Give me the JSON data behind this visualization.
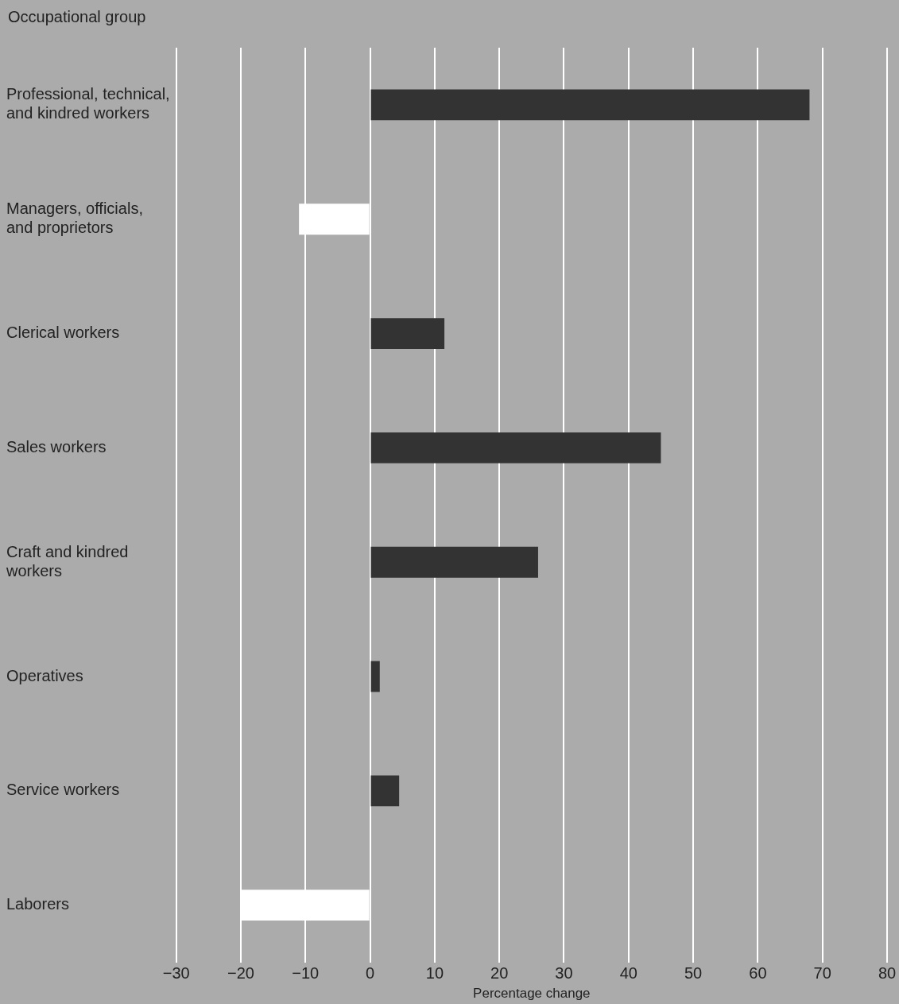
{
  "chart_data": {
    "type": "bar",
    "orientation": "horizontal",
    "ylabel": "Occupational group",
    "xlabel": "Percentage change",
    "categories": [
      "Professional, technical, and kindred workers",
      "Managers, officials, and proprietors",
      "Clerical workers",
      "Sales workers",
      "Craft and kindred workers",
      "Operatives",
      "Service workers",
      "Laborers"
    ],
    "values": [
      68,
      -11,
      11.5,
      45,
      26,
      1.5,
      4.5,
      -20
    ],
    "colors": [
      "#333333",
      "#ffffff",
      "#333333",
      "#333333",
      "#333333",
      "#333333",
      "#333333",
      "#ffffff"
    ],
    "xlim": [
      -30,
      80
    ],
    "xticks": [
      {
        "value": -30,
        "label": "−30"
      },
      {
        "value": -20,
        "label": "−20"
      },
      {
        "value": -10,
        "label": "−10"
      },
      0,
      10,
      20,
      30,
      40,
      50,
      60,
      70,
      80
    ],
    "grid": "x",
    "legend": false
  }
}
